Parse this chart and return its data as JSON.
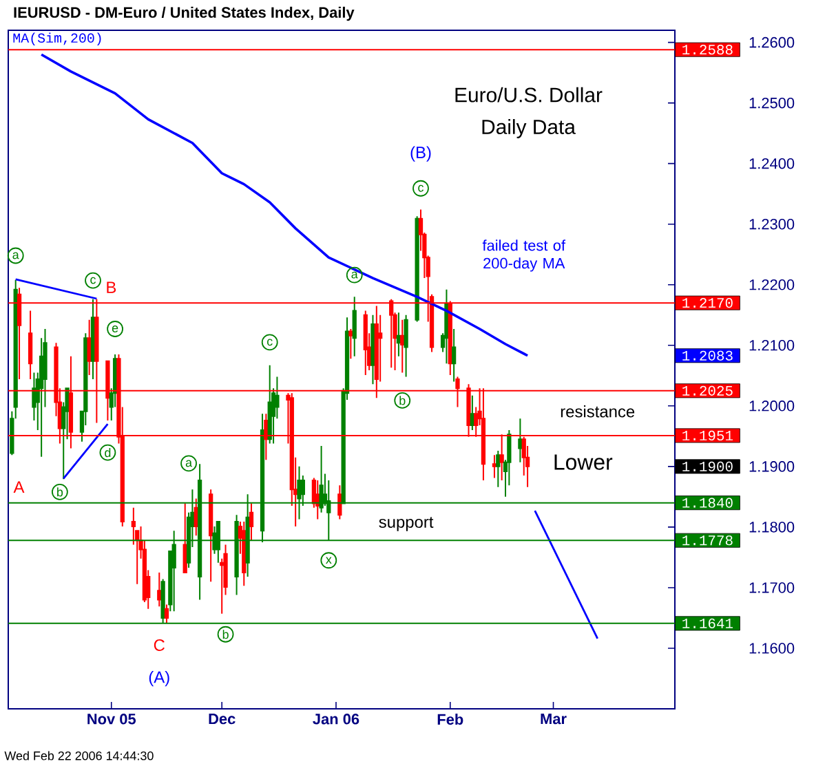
{
  "chart_data": {
    "type": "candlestick",
    "title": "Euro/U.S. Dollar",
    "subtitle": "Daily Data",
    "x": [
      "2005-10-05",
      "2005-10-06",
      "2005-10-07",
      "2005-10-10",
      "2005-10-11",
      "2005-10-12",
      "2005-10-13",
      "2005-10-14",
      "2005-10-17",
      "2005-10-18",
      "2005-10-19",
      "2005-10-20",
      "2005-10-21",
      "2005-10-24",
      "2005-10-25",
      "2005-10-26",
      "2005-10-27",
      "2005-10-28",
      "2005-10-31",
      "2005-11-01",
      "2005-11-02",
      "2005-11-03",
      "2005-11-04",
      "2005-11-07",
      "2005-11-08",
      "2005-11-09",
      "2005-11-10",
      "2005-11-11",
      "2005-11-14",
      "2005-11-15",
      "2005-11-16",
      "2005-11-17",
      "2005-11-18",
      "2005-11-21",
      "2005-11-22",
      "2005-11-23",
      "2005-11-24",
      "2005-11-25",
      "2005-11-28",
      "2005-11-29",
      "2005-11-30",
      "2005-12-01",
      "2005-12-02",
      "2005-12-05",
      "2005-12-06",
      "2005-12-07",
      "2005-12-08",
      "2005-12-09",
      "2005-12-12",
      "2005-12-13",
      "2005-12-14",
      "2005-12-15",
      "2005-12-16",
      "2005-12-19",
      "2005-12-20",
      "2005-12-21",
      "2005-12-22",
      "2005-12-23",
      "2005-12-26",
      "2005-12-27",
      "2005-12-28",
      "2005-12-29",
      "2005-12-30",
      "2006-01-02",
      "2006-01-03",
      "2006-01-04",
      "2006-01-05",
      "2006-01-06",
      "2006-01-09",
      "2006-01-10",
      "2006-01-11",
      "2006-01-12",
      "2006-01-13",
      "2006-01-16",
      "2006-01-17",
      "2006-01-18",
      "2006-01-19",
      "2006-01-20",
      "2006-01-23",
      "2006-01-24",
      "2006-01-25",
      "2006-01-26",
      "2006-01-27",
      "2006-01-30",
      "2006-01-31",
      "2006-02-01",
      "2006-02-02",
      "2006-02-03",
      "2006-02-06",
      "2006-02-07",
      "2006-02-08",
      "2006-02-09",
      "2006-02-10",
      "2006-02-13",
      "2006-02-14",
      "2006-02-15",
      "2006-02-16",
      "2006-02-17",
      "2006-02-20",
      "2006-02-21",
      "2006-02-22"
    ],
    "ohlc": [
      [
        1.1922,
        1.1991,
        1.1919,
        1.1979
      ],
      [
        1.1998,
        1.2208,
        1.1979,
        1.2192
      ],
      [
        1.2184,
        1.2195,
        1.2044,
        1.2133
      ],
      [
        1.212,
        1.2157,
        1.2044,
        1.207
      ],
      [
        1.1998,
        1.2055,
        1.1976,
        1.2029
      ],
      [
        1.2006,
        1.2055,
        1.196,
        1.2044
      ],
      [
        1.2029,
        1.2112,
        1.1916,
        1.2082
      ],
      [
        1.2044,
        1.2127,
        1.1998,
        1.2104
      ],
      [
        1.2097,
        1.2104,
        1.1983,
        1.2006
      ],
      [
        1.2006,
        1.2029,
        1.1938,
        1.1963
      ],
      [
        1.1963,
        1.2006,
        1.1879,
        1.1998
      ],
      [
        1.1991,
        1.2029,
        1.1945,
        1.2029
      ],
      [
        1.2021,
        1.2082,
        1.193,
        1.1957
      ],
      [
        1.1957,
        1.1991,
        1.1941,
        1.1991
      ],
      [
        1.1991,
        1.212,
        1.1968,
        1.2112
      ],
      [
        1.2112,
        1.2142,
        1.2051,
        1.2074
      ],
      [
        1.2074,
        1.2176,
        1.2044,
        1.2146
      ],
      [
        1.2146,
        1.2176,
        1.1972,
        1.2074
      ],
      [
        1.2074,
        1.2074,
        1.1976,
        1.2013
      ],
      [
        1.1998,
        1.2029,
        1.1976,
        1.2021
      ],
      [
        1.2021,
        1.2085,
        1.1998,
        1.2078
      ],
      [
        1.2078,
        1.2085,
        1.1938,
        1.1949
      ],
      [
        1.1949,
        1.1998,
        1.1801,
        1.1809
      ],
      [
        1.1809,
        1.1832,
        1.1771,
        1.1801
      ],
      [
        1.1794,
        1.1794,
        1.1706,
        1.1778
      ],
      [
        1.1778,
        1.1801,
        1.1748,
        1.1763
      ],
      [
        1.1763,
        1.1778,
        1.1676,
        1.168
      ],
      [
        1.1718,
        1.1729,
        1.1665,
        1.1684
      ],
      [
        1.1695,
        1.1725,
        1.1669,
        1.168
      ],
      [
        1.165,
        1.1714,
        1.1641,
        1.171
      ],
      [
        1.1665,
        1.1672,
        1.1642,
        1.165
      ],
      [
        1.1672,
        1.176,
        1.1661,
        1.176
      ],
      [
        1.1733,
        1.1794,
        1.1661,
        1.1771
      ],
      [
        1.1771,
        1.1839,
        1.1725,
        1.1725
      ],
      [
        1.1741,
        1.1824,
        1.1733,
        1.1816
      ],
      [
        1.1801,
        1.1862,
        1.1767,
        1.1824
      ],
      [
        1.1832,
        1.1847,
        1.1786,
        1.1801
      ],
      [
        1.1718,
        1.1904,
        1.168,
        1.1877
      ],
      [
        1.1854,
        1.1862,
        1.171,
        1.1786
      ],
      [
        1.1763,
        1.1801,
        1.1756,
        1.179
      ],
      [
        1.1763,
        1.1809,
        1.1741,
        1.1809
      ],
      [
        1.1741,
        1.1748,
        1.1657,
        1.1737
      ],
      [
        1.1756,
        1.1771,
        1.1688,
        1.1701
      ],
      [
        1.1718,
        1.182,
        1.1688,
        1.1809
      ],
      [
        1.1801,
        1.1809,
        1.1756,
        1.1782
      ],
      [
        1.1794,
        1.1809,
        1.1703,
        1.1725
      ],
      [
        1.1741,
        1.1854,
        1.1718,
        1.1816
      ],
      [
        1.1824,
        1.1839,
        1.1778,
        1.1801
      ],
      [
        1.1794,
        1.1987,
        1.1775,
        1.196
      ],
      [
        1.1976,
        1.1987,
        1.1911,
        1.1945
      ],
      [
        1.1945,
        1.2067,
        1.1938,
        1.2006
      ],
      [
        1.1983,
        1.2029,
        1.1938,
        1.2021
      ],
      [
        1.1998,
        1.2048,
        1.1979,
        1.2017
      ],
      [
        1.2017,
        1.2021,
        1.1938,
        1.201
      ],
      [
        1.2013,
        1.2021,
        1.1835,
        1.1862
      ],
      [
        1.1862,
        1.1915,
        1.1801,
        1.1854
      ],
      [
        1.1847,
        1.19,
        1.1813,
        1.1877
      ],
      [
        1.1854,
        1.1885,
        1.1835,
        1.1877
      ],
      [
        1.1877,
        1.1881,
        1.1832,
        1.1839
      ],
      [
        1.1854,
        1.1877,
        1.1813,
        1.1835
      ],
      [
        1.1832,
        1.1934,
        1.1824,
        1.1869
      ],
      [
        1.1839,
        1.1888,
        1.1835,
        1.1854
      ],
      [
        1.1824,
        1.1877,
        1.1778,
        1.1843
      ],
      [
        1.1854,
        1.1869,
        1.1813,
        1.182
      ],
      [
        1.1839,
        1.2029,
        1.1839,
        1.2025
      ],
      [
        1.2021,
        1.2146,
        1.201,
        1.2123
      ],
      [
        1.2123,
        1.2127,
        1.2078,
        1.2116
      ],
      [
        1.2112,
        1.218,
        1.2082,
        1.2157
      ],
      [
        1.215,
        1.2157,
        1.2051,
        1.2093
      ],
      [
        1.2097,
        1.212,
        1.2059,
        1.2067
      ],
      [
        1.2067,
        1.215,
        1.2036,
        1.2135
      ],
      [
        1.2135,
        1.2165,
        1.2013,
        1.2044
      ],
      [
        1.212,
        1.215,
        1.204,
        1.2112
      ],
      [
        1.2173,
        1.2176,
        1.2063,
        1.215
      ],
      [
        1.215,
        1.2154,
        1.2059,
        1.2112
      ],
      [
        1.2104,
        1.2154,
        1.2082,
        1.2116
      ],
      [
        1.2116,
        1.2142,
        1.2055,
        1.2101
      ],
      [
        1.2097,
        1.215,
        1.2048,
        1.2142
      ],
      [
        1.2142,
        1.2313,
        1.2139,
        1.2309
      ],
      [
        1.2309,
        1.2324,
        1.2256,
        1.2283
      ],
      [
        1.2283,
        1.2286,
        1.2211,
        1.2245
      ],
      [
        1.2245,
        1.2248,
        1.2139,
        1.2214
      ],
      [
        1.218,
        1.2184,
        1.2089,
        1.2097
      ],
      [
        1.2097,
        1.212,
        1.2089,
        1.2116
      ],
      [
        1.2112,
        1.2192,
        1.207,
        1.2169
      ],
      [
        1.2169,
        1.2173,
        1.2051,
        1.207
      ],
      [
        1.207,
        1.2127,
        1.204,
        1.2097
      ],
      [
        1.2044,
        1.2048,
        1.1998,
        1.2029
      ],
      [
        1.2029,
        1.2036,
        1.1949,
        1.1968
      ],
      [
        1.1968,
        1.2017,
        1.196,
        1.1987
      ],
      [
        1.1987,
        1.1998,
        1.1949,
        1.1968
      ],
      [
        1.1991,
        1.2029,
        1.1968,
        1.1979
      ],
      [
        1.1979,
        1.2029,
        1.1877,
        1.1904
      ],
      [
        1.1904,
        1.1919,
        1.1881,
        1.19
      ],
      [
        1.19,
        1.1926,
        1.1866,
        1.1919
      ],
      [
        1.1919,
        1.1953,
        1.1877,
        1.1907
      ],
      [
        1.1892,
        1.1911,
        1.185,
        1.1907
      ],
      [
        1.1907,
        1.196,
        1.1869,
        1.1953
      ],
      [
        1.193,
        1.1979,
        1.1907,
        1.1945
      ],
      [
        1.1945,
        1.1949,
        1.1885,
        1.1915
      ],
      [
        1.1915,
        1.1934,
        1.1866,
        1.19
      ]
    ],
    "colors": [
      "#008000",
      "#008000",
      "#ff0000",
      "#ff0000",
      "#008000",
      "#008000",
      "#008000",
      "#008000",
      "#ff0000",
      "#ff0000",
      "#008000",
      "#008000",
      "#ff0000",
      "#008000",
      "#008000",
      "#ff0000",
      "#008000",
      "#ff0000",
      "#ff0000",
      "#008000",
      "#008000",
      "#ff0000",
      "#ff0000",
      "#ff0000",
      "#ff0000",
      "#ff0000",
      "#ff0000",
      "#ff0000",
      "#ff0000",
      "#008000",
      "#ff0000",
      "#008000",
      "#008000",
      "#ff0000",
      "#008000",
      "#008000",
      "#ff0000",
      "#008000",
      "#ff0000",
      "#008000",
      "#008000",
      "#ff0000",
      "#ff0000",
      "#008000",
      "#ff0000",
      "#ff0000",
      "#008000",
      "#ff0000",
      "#008000",
      "#ff0000",
      "#008000",
      "#008000",
      "#008000",
      "#ff0000",
      "#ff0000",
      "#ff0000",
      "#008000",
      "#008000",
      "#ff0000",
      "#ff0000",
      "#008000",
      "#008000",
      "#008000",
      "#ff0000",
      "#008000",
      "#008000",
      "#ff0000",
      "#008000",
      "#ff0000",
      "#ff0000",
      "#008000",
      "#ff0000",
      "#ff0000",
      "#ff0000",
      "#ff0000",
      "#008000",
      "#ff0000",
      "#008000",
      "#008000",
      "#ff0000",
      "#ff0000",
      "#ff0000",
      "#ff0000",
      "#008000",
      "#008000",
      "#ff0000",
      "#008000",
      "#ff0000",
      "#ff0000",
      "#008000",
      "#ff0000",
      "#ff0000",
      "#ff0000",
      "#ff0000",
      "#008000",
      "#ff0000",
      "#008000",
      "#008000",
      "#008000",
      "#ff0000",
      "#ff0000"
    ],
    "series": [
      {
        "name": "MA(Sim,200)",
        "type": "line",
        "color": "#0000ff",
        "x": [
          "2005-10-13",
          "2005-10-21",
          "2005-11-02",
          "2005-11-11",
          "2005-11-23",
          "2005-12-01",
          "2005-12-07",
          "2005-12-14",
          "2005-12-21",
          "2005-12-30",
          "2006-01-11",
          "2006-01-23",
          "2006-01-31",
          "2006-02-09",
          "2006-02-16",
          "2006-02-22"
        ],
        "values": [
          1.258,
          1.2552,
          1.2516,
          1.2473,
          1.2434,
          1.2384,
          1.2366,
          1.2336,
          1.2293,
          1.2245,
          1.2211,
          1.218,
          1.2157,
          1.2127,
          1.2102,
          1.2083
        ]
      },
      {
        "type": "line",
        "color": "#0000ff",
        "x": [
          "2005-10-06",
          "2005-10-28"
        ],
        "values": [
          1.2209,
          1.2177
        ]
      },
      {
        "type": "line",
        "color": "#0000ff",
        "x": [
          "2005-10-19",
          "2005-10-31"
        ],
        "values": [
          1.188,
          1.197
        ]
      },
      {
        "type": "line",
        "color": "#0000ff",
        "x": [
          "2006-02-24",
          "2006-03-13"
        ],
        "values": [
          1.1827,
          1.1616
        ]
      }
    ],
    "xlim": [
      "2005-10-04",
      "2006-04-03"
    ],
    "xticks": [
      {
        "value": "2005-11-01",
        "label": "Nov 05"
      },
      {
        "value": "2005-12-01",
        "label": "Dec"
      },
      {
        "value": "2006-01-01",
        "label": "Jan 06"
      },
      {
        "value": "2006-02-01",
        "label": "Feb"
      },
      {
        "value": "2006-03-01",
        "label": "Mar"
      }
    ],
    "ylim": [
      1.15,
      1.262
    ],
    "yticks": [
      {
        "value": 1.16,
        "label": "1.1600"
      },
      {
        "value": 1.17,
        "label": "1.1700"
      },
      {
        "value": 1.18,
        "label": "1.1800"
      },
      {
        "value": 1.19,
        "label": "1.1900"
      },
      {
        "value": 1.2,
        "label": "1.2000"
      },
      {
        "value": 1.21,
        "label": "1.2100"
      },
      {
        "value": 1.22,
        "label": "1.2200"
      },
      {
        "value": 1.23,
        "label": "1.2300"
      },
      {
        "value": 1.24,
        "label": "1.2400"
      },
      {
        "value": 1.25,
        "label": "1.2500"
      },
      {
        "value": 1.26,
        "label": "1.2600"
      }
    ],
    "ref_lines": [
      {
        "axis": "y",
        "value": 1.2588,
        "label": "1.2588",
        "color": "#ff0000"
      },
      {
        "axis": "y",
        "value": 1.217,
        "label": "1.2170",
        "color": "#ff0000"
      },
      {
        "axis": "y",
        "value": 1.2025,
        "label": "1.2025",
        "color": "#ff0000"
      },
      {
        "axis": "y",
        "value": 1.1951,
        "label": "1.1951",
        "color": "#ff0000"
      },
      {
        "axis": "y",
        "value": 1.184,
        "label": "1.1840",
        "color": "#008000"
      },
      {
        "axis": "y",
        "value": 1.1778,
        "label": "1.1778",
        "color": "#008000"
      },
      {
        "axis": "y",
        "value": 1.1641,
        "label": "1.1641",
        "color": "#008000"
      }
    ],
    "annotations": [
      "IEURUSD - DM-Euro / United States Index, Daily",
      "Wed Feb 22 2006 14:44:30",
      {
        "text": "a",
        "x": "2005-10-06",
        "y": 1.2248
      },
      {
        "text": "c",
        "x": "2005-10-27",
        "y": 1.2207
      },
      {
        "text": "B",
        "x": "2005-10-28",
        "y": 1.2176
      },
      {
        "text": "e",
        "x": "2005-11-02",
        "y": 1.2127
      },
      "d",
      {
        "text": "b",
        "x": "2005-10-18",
        "y": 1.1858
      },
      "A",
      {
        "text": "a",
        "x": "2005-11-22",
        "y": 1.1905
      },
      "C",
      "(A)",
      "b",
      {
        "text": "c",
        "x": "2005-12-14",
        "y": 1.2105
      },
      "x",
      {
        "text": "a",
        "x": "2006-01-06",
        "y": 1.2216
      },
      {
        "text": "b",
        "x": "2006-01-19",
        "y": 1.2009
      },
      {
        "text": "c",
        "x": "2006-01-24",
        "y": 1.2359
      },
      "(B)",
      "failed test of 200-day MA",
      "resistance",
      "Lower",
      "support",
      "1.2083",
      "1.1900"
    ],
    "legend": "top left"
  }
}
